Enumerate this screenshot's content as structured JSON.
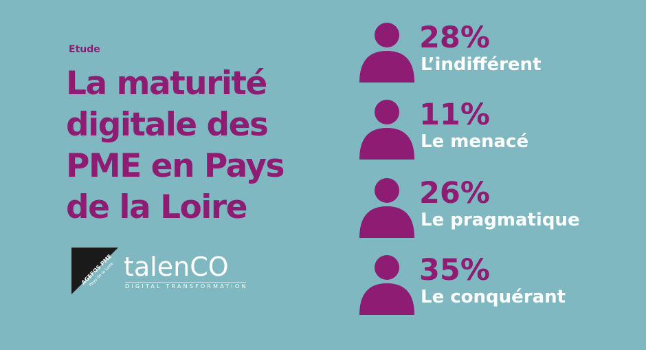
{
  "header": {
    "eyebrow": "Etude",
    "title": "La maturité digitale des PME en Pays de la Loire"
  },
  "logos": {
    "agefos": {
      "line1": "AGEFOS PME",
      "line2": "Pays de la Loire"
    },
    "talenco": {
      "name": "talenCO",
      "tagline": "DIGITAL TRANSFORMATION"
    }
  },
  "profiles": [
    {
      "percent": "28%",
      "label": "L’indifférent"
    },
    {
      "percent": "11%",
      "label": "Le menacé"
    },
    {
      "percent": "26%",
      "label": "Le pragmatique"
    },
    {
      "percent": "35%",
      "label": "Le conquérant"
    }
  ],
  "colors": {
    "background": "#7fb8c0",
    "accent": "#8e1c73",
    "text_light": "#ffffff"
  },
  "icons": {
    "profile": "person-icon"
  }
}
